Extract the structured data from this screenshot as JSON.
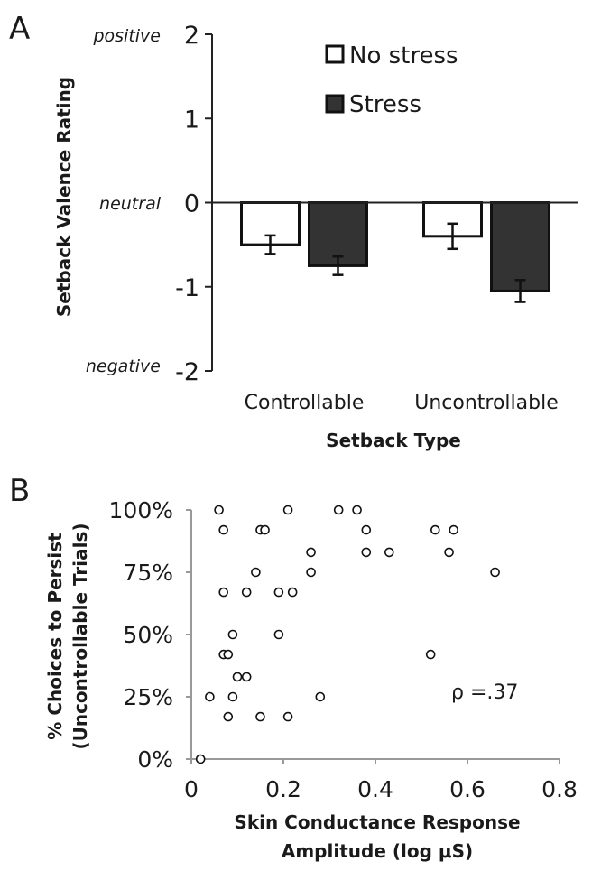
{
  "chart_data": [
    {
      "panel": "A",
      "type": "bar",
      "categories": [
        "Controllable",
        "Uncontrollable"
      ],
      "series": [
        {
          "name": "No stress",
          "color": "#ffffff",
          "values": [
            -0.5,
            -0.4
          ],
          "errors": [
            0.11,
            0.15
          ]
        },
        {
          "name": "Stress",
          "color": "#333333",
          "values": [
            -0.75,
            -1.05
          ],
          "errors": [
            0.11,
            0.13
          ]
        }
      ],
      "ylabel": "Setback Valence Rating",
      "xlabel": "Setback Type",
      "ylim": [
        -2,
        2
      ],
      "yticks": [
        "2",
        "1",
        "0",
        "-1",
        "-2"
      ],
      "anchor_labels": {
        "positive": "positive",
        "neutral": "neutral",
        "negative": "negative"
      },
      "legend_position": "top-right"
    },
    {
      "panel": "B",
      "type": "scatter",
      "xlabel_line1": "Skin Conductance Response",
      "xlabel_line2": "Amplitude (log μS)",
      "ylabel_line1": "% Choices to Persist",
      "ylabel_line2": "(Uncontrollable Trials)",
      "xlim": [
        0,
        0.8
      ],
      "ylim": [
        0,
        100
      ],
      "xticks": [
        "0",
        "0.2",
        "0.4",
        "0.6",
        "0.8"
      ],
      "yticks": [
        "0%",
        "25%",
        "50%",
        "75%",
        "100%"
      ],
      "annotation": "ρ =.37",
      "points": [
        [
          0.06,
          100
        ],
        [
          0.21,
          100
        ],
        [
          0.32,
          100
        ],
        [
          0.36,
          100
        ],
        [
          0.07,
          92
        ],
        [
          0.15,
          92
        ],
        [
          0.16,
          92
        ],
        [
          0.38,
          92
        ],
        [
          0.53,
          92
        ],
        [
          0.57,
          92
        ],
        [
          0.26,
          83
        ],
        [
          0.38,
          83
        ],
        [
          0.43,
          83
        ],
        [
          0.56,
          83
        ],
        [
          0.14,
          75
        ],
        [
          0.26,
          75
        ],
        [
          0.66,
          75
        ],
        [
          0.07,
          67
        ],
        [
          0.12,
          67
        ],
        [
          0.19,
          67
        ],
        [
          0.22,
          67
        ],
        [
          0.09,
          50
        ],
        [
          0.19,
          50
        ],
        [
          0.07,
          42
        ],
        [
          0.08,
          42
        ],
        [
          0.52,
          42
        ],
        [
          0.1,
          33
        ],
        [
          0.12,
          33
        ],
        [
          0.04,
          25
        ],
        [
          0.09,
          25
        ],
        [
          0.28,
          25
        ],
        [
          0.08,
          17
        ],
        [
          0.15,
          17
        ],
        [
          0.21,
          17
        ],
        [
          0.02,
          0
        ]
      ]
    }
  ]
}
